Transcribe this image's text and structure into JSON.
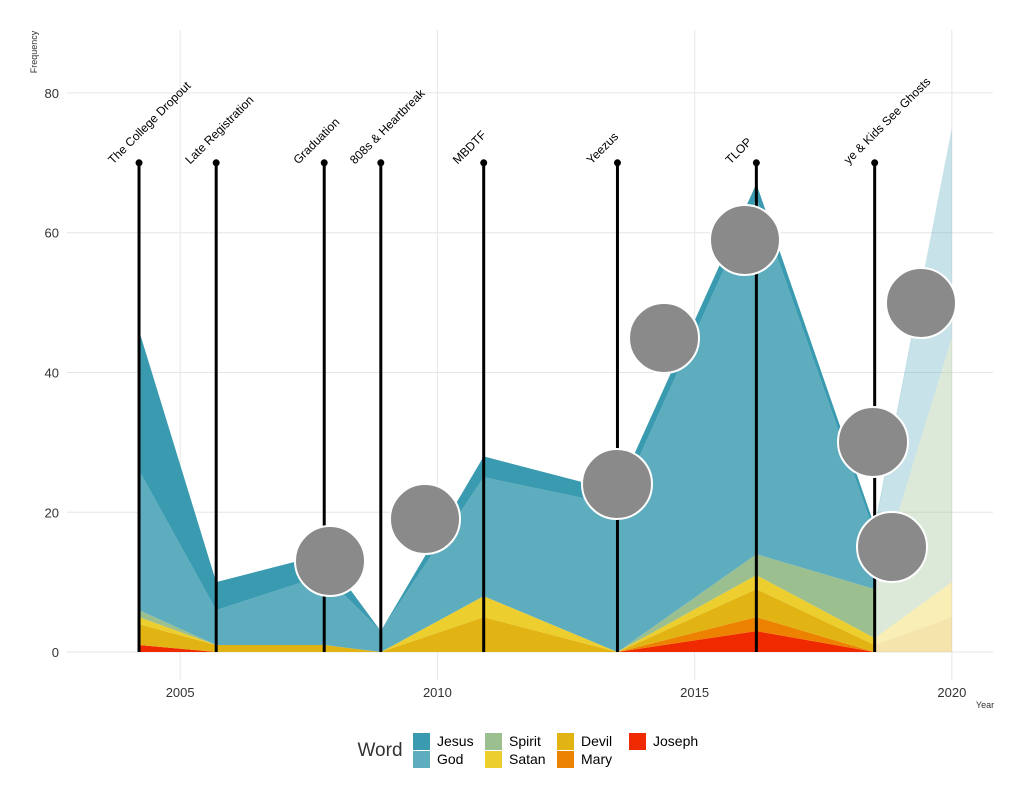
{
  "chart_data": {
    "type": "stacked_area",
    "y_label": "Frequency",
    "x_label": "Year",
    "legend_title": "Word",
    "x": [
      2004.2,
      2005.7,
      2007.8,
      2008.9,
      2010.9,
      2013.5,
      2016.2,
      2018.5,
      2020
    ],
    "series": [
      {
        "name": "Joseph",
        "color": "#f02a00",
        "values": [
          1,
          0,
          0,
          0,
          0,
          0,
          3,
          0,
          0
        ]
      },
      {
        "name": "Mary",
        "color": "#ed8200",
        "values": [
          0,
          0,
          0,
          0,
          0,
          0,
          2,
          0,
          0
        ]
      },
      {
        "name": "Devil",
        "color": "#e2b413",
        "values": [
          3,
          1,
          1,
          0,
          5,
          0,
          4,
          1,
          5
        ]
      },
      {
        "name": "Satan",
        "color": "#ecce2e",
        "values": [
          1,
          0,
          0,
          0,
          3,
          0,
          2,
          1,
          5
        ]
      },
      {
        "name": "Spirit",
        "color": "#9bbf8f",
        "values": [
          1,
          0,
          0,
          0,
          0,
          0,
          3,
          7,
          35
        ]
      },
      {
        "name": "God",
        "color": "#5eadbf",
        "values": [
          20,
          5,
          10,
          3,
          17,
          21,
          51,
          8,
          30
        ]
      },
      {
        "name": "Jesus",
        "color": "#3a9bb0",
        "values": [
          20,
          4,
          3,
          0,
          3,
          2,
          2,
          1,
          0
        ]
      }
    ],
    "albums": [
      {
        "label": "The College Dropout",
        "x": 2004.2
      },
      {
        "label": "Late Registration",
        "x": 2005.7
      },
      {
        "label": "Graduation",
        "x": 2007.8
      },
      {
        "label": "808s & Heartbreak",
        "x": 2008.9
      },
      {
        "label": "MBDTF",
        "x": 2010.9
      },
      {
        "label": "Yeezus",
        "x": 2013.5
      },
      {
        "label": "TLOP",
        "x": 2016.2
      },
      {
        "label": "ye & Kids See Ghosts",
        "x": 2018.5
      }
    ],
    "marker_top": 70,
    "xlim": [
      2002.8,
      2020.8
    ],
    "ylim": [
      -4,
      89
    ],
    "xticks": [
      2005,
      2010,
      2015,
      2020
    ],
    "yticks": [
      0,
      20,
      40,
      60,
      80
    ],
    "grid": true,
    "legend": "bottom",
    "legend_order": [
      "Jesus",
      "God",
      "Spirit",
      "Satan",
      "Devil",
      "Mary",
      "Joseph"
    ]
  }
}
